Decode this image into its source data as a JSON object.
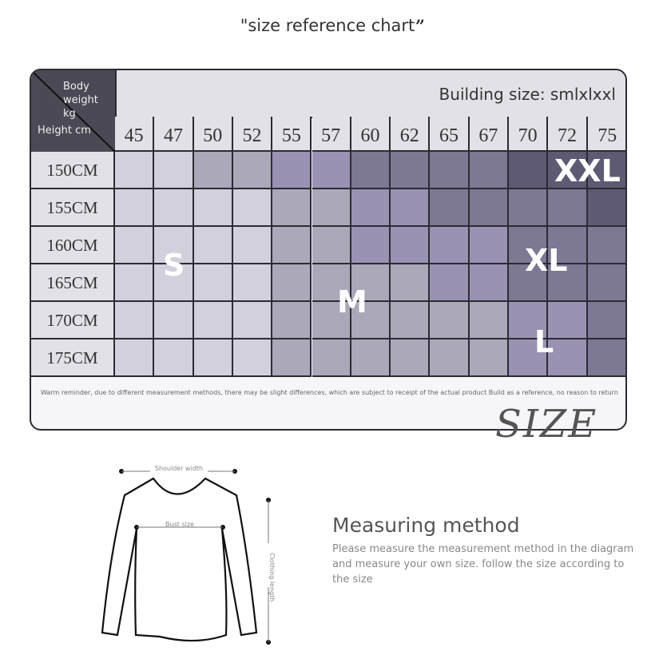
{
  "title": {
    "text": "\"size reference chart",
    "close_quote": "”"
  },
  "table": {
    "corner_weight": "Body weight kg",
    "corner_height": "Height cm",
    "building_size": "Building size: smlxlxxl",
    "weights": [
      "45",
      "47",
      "50",
      "52",
      "55",
      "57",
      "60",
      "62",
      "65",
      "67",
      "70",
      "72",
      "75"
    ],
    "heights": [
      "150CM",
      "155CM",
      "160CM",
      "165CM",
      "170CM",
      "175CM"
    ],
    "palette": {
      "a": "#d2d0dc",
      "b": "#aba8b9",
      "c": "#9a92b3",
      "d": "#7d7893",
      "e": "#5e5a73"
    },
    "cells": [
      "aabbccddddeee",
      "aaaabbccddddе",
      "aaaabbccccddd",
      "aaaabbbbccddd",
      "aaaabbbbbbccd",
      "aaaabbbbbbccd"
    ],
    "size_labels": {
      "s": "S",
      "m": "M",
      "l": "L",
      "xl": "XL",
      "xxl": "XXL"
    },
    "note": "Warm reminder, due to different measurement methods, there may be slight differences, which are subject to receipt of the actual product Build as a reference, no reason to return",
    "size_word": "SIZE"
  },
  "diagram": {
    "shoulder": "Shoulder width",
    "bust": "Bust size",
    "length": "Clothing length"
  },
  "measuring": {
    "title": "Measuring method",
    "description": "Please measure the measurement method in the diagram and measure your own size. follow the size according to the size"
  }
}
